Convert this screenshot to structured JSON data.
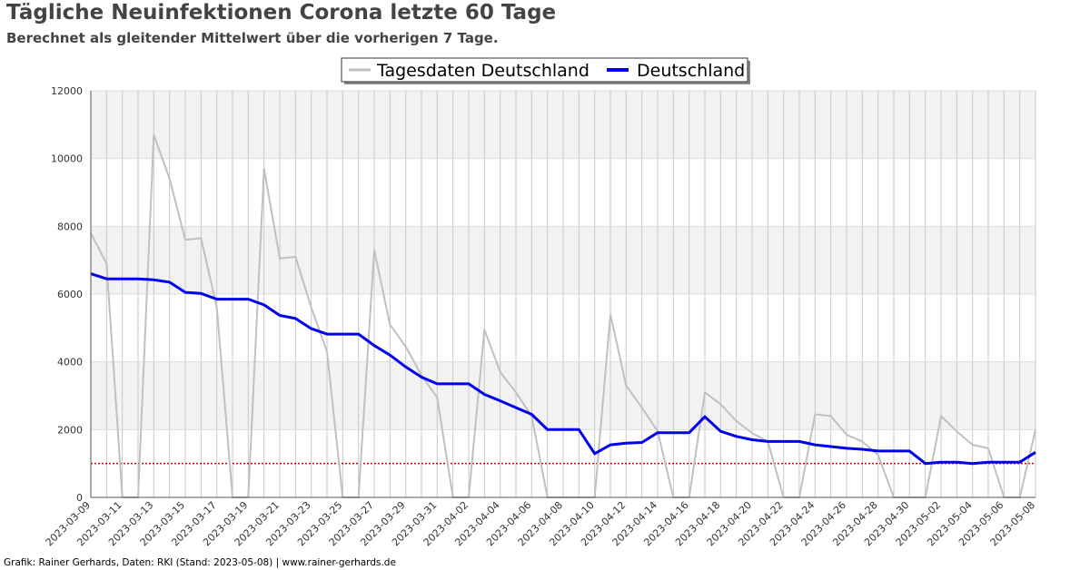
{
  "header": {
    "title": "Tägliche Neuinfektionen Corona letzte 60 Tage",
    "subtitle": "Berechnet als gleitender Mittelwert über die vorherigen 7 Tage."
  },
  "footer": {
    "credit": "Grafik: Rainer Gerhards, Daten: RKI (Stand: 2023-05-08) | www.rainer-gerhards.de"
  },
  "chart_data": {
    "type": "line",
    "title": "Tägliche Neuinfektionen Corona letzte 60 Tage",
    "subtitle": "Berechnet als gleitender Mittelwert über die vorherigen 7 Tage.",
    "xlabel": "",
    "ylabel": "",
    "ylim": [
      0,
      12000
    ],
    "yticks": [
      0,
      2000,
      4000,
      6000,
      8000,
      10000,
      12000
    ],
    "grid": true,
    "legend_position": "top-center",
    "reference_line": {
      "y": 1000,
      "color": "#cc0000",
      "style": "dotted"
    },
    "x": [
      "2023-03-09",
      "2023-03-10",
      "2023-03-11",
      "2023-03-12",
      "2023-03-13",
      "2023-03-14",
      "2023-03-15",
      "2023-03-16",
      "2023-03-17",
      "2023-03-18",
      "2023-03-19",
      "2023-03-20",
      "2023-03-21",
      "2023-03-22",
      "2023-03-23",
      "2023-03-24",
      "2023-03-25",
      "2023-03-26",
      "2023-03-27",
      "2023-03-28",
      "2023-03-29",
      "2023-03-30",
      "2023-03-31",
      "2023-04-01",
      "2023-04-02",
      "2023-04-03",
      "2023-04-04",
      "2023-04-05",
      "2023-04-06",
      "2023-04-07",
      "2023-04-08",
      "2023-04-09",
      "2023-04-10",
      "2023-04-11",
      "2023-04-12",
      "2023-04-13",
      "2023-04-14",
      "2023-04-15",
      "2023-04-16",
      "2023-04-17",
      "2023-04-18",
      "2023-04-19",
      "2023-04-20",
      "2023-04-21",
      "2023-04-22",
      "2023-04-23",
      "2023-04-24",
      "2023-04-25",
      "2023-04-26",
      "2023-04-27",
      "2023-04-28",
      "2023-04-29",
      "2023-04-30",
      "2023-05-01",
      "2023-05-02",
      "2023-05-03",
      "2023-05-04",
      "2023-05-05",
      "2023-05-06",
      "2023-05-07",
      "2023-05-08"
    ],
    "xtick_labels": [
      "2023-03-09",
      "2023-03-11",
      "2023-03-13",
      "2023-03-15",
      "2023-03-17",
      "2023-03-19",
      "2023-03-21",
      "2023-03-23",
      "2023-03-25",
      "2023-03-27",
      "2023-03-29",
      "2023-03-31",
      "2023-04-02",
      "2023-04-04",
      "2023-04-06",
      "2023-04-08",
      "2023-04-10",
      "2023-04-12",
      "2023-04-14",
      "2023-04-16",
      "2023-04-18",
      "2023-04-20",
      "2023-04-22",
      "2023-04-24",
      "2023-04-26",
      "2023-04-28",
      "2023-04-30",
      "2023-05-02",
      "2023-05-04",
      "2023-05-06",
      "2023-05-08"
    ],
    "series": [
      {
        "name": "Tagesdaten Deutschland",
        "color": "#c0c0c0",
        "line_width": 2,
        "values": [
          7800,
          6900,
          0,
          0,
          10700,
          9400,
          7600,
          7650,
          5600,
          0,
          0,
          9700,
          7050,
          7100,
          5600,
          4300,
          0,
          0,
          7300,
          5100,
          4450,
          3600,
          2950,
          0,
          0,
          4950,
          3700,
          3100,
          2400,
          0,
          0,
          0,
          0,
          5400,
          3300,
          2650,
          1950,
          0,
          0,
          3100,
          2750,
          2250,
          1900,
          1650,
          0,
          0,
          2450,
          2400,
          1850,
          1650,
          1250,
          0,
          0,
          0,
          2400,
          1950,
          1550,
          1450,
          0,
          0,
          2000
        ]
      },
      {
        "name": "Deutschland",
        "color": "#0000ee",
        "line_width": 3,
        "values": [
          6600,
          6450,
          6450,
          6450,
          6420,
          6350,
          6050,
          6020,
          5850,
          5850,
          5850,
          5680,
          5370,
          5280,
          4980,
          4820,
          4820,
          4820,
          4480,
          4200,
          3850,
          3550,
          3350,
          3350,
          3350,
          3040,
          2850,
          2650,
          2450,
          2000,
          2000,
          2000,
          1290,
          1550,
          1600,
          1620,
          1910,
          1910,
          1910,
          2380,
          1950,
          1800,
          1700,
          1650,
          1650,
          1650,
          1550,
          1500,
          1450,
          1420,
          1370,
          1370,
          1370,
          1000,
          1040,
          1040,
          1000,
          1040,
          1040,
          1040,
          1330
        ]
      }
    ]
  },
  "colors": {
    "band_shade": "#f2f2f2",
    "grid_line": "#c8c8c8",
    "axis": "#555555",
    "title_text": "#444444"
  }
}
